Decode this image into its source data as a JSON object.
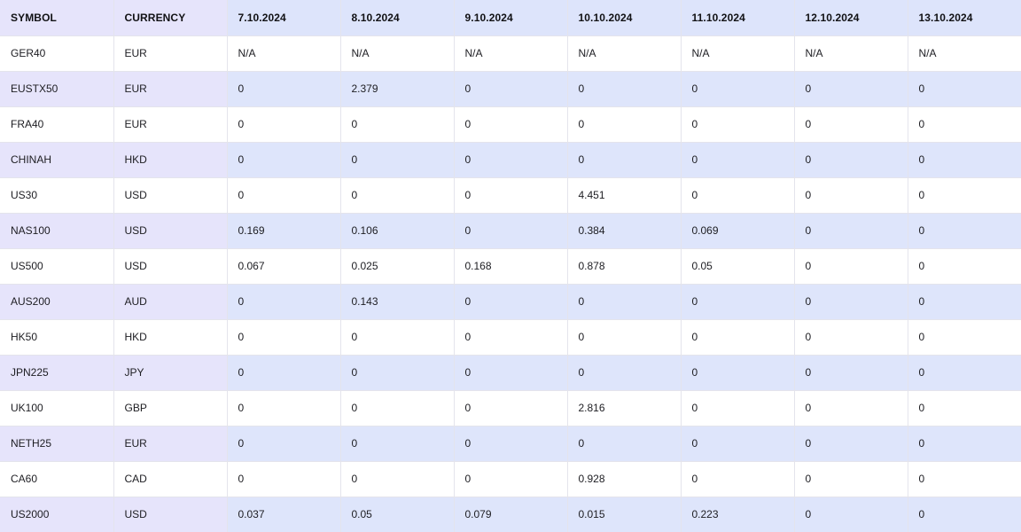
{
  "table": {
    "headers": [
      "SYMBOL",
      "CURRENCY",
      "7.10.2024",
      "8.10.2024",
      "9.10.2024",
      "10.10.2024",
      "11.10.2024",
      "12.10.2024",
      "13.10.2024"
    ],
    "rows": [
      {
        "symbol": "GER40",
        "currency": "EUR",
        "values": [
          "N/A",
          "N/A",
          "N/A",
          "N/A",
          "N/A",
          "N/A",
          "N/A"
        ]
      },
      {
        "symbol": "EUSTX50",
        "currency": "EUR",
        "values": [
          "0",
          "2.379",
          "0",
          "0",
          "0",
          "0",
          "0"
        ]
      },
      {
        "symbol": "FRA40",
        "currency": "EUR",
        "values": [
          "0",
          "0",
          "0",
          "0",
          "0",
          "0",
          "0"
        ]
      },
      {
        "symbol": "CHINAH",
        "currency": "HKD",
        "values": [
          "0",
          "0",
          "0",
          "0",
          "0",
          "0",
          "0"
        ]
      },
      {
        "symbol": "US30",
        "currency": "USD",
        "values": [
          "0",
          "0",
          "0",
          "4.451",
          "0",
          "0",
          "0"
        ]
      },
      {
        "symbol": "NAS100",
        "currency": "USD",
        "values": [
          "0.169",
          "0.106",
          "0",
          "0.384",
          "0.069",
          "0",
          "0"
        ]
      },
      {
        "symbol": "US500",
        "currency": "USD",
        "values": [
          "0.067",
          "0.025",
          "0.168",
          "0.878",
          "0.05",
          "0",
          "0"
        ]
      },
      {
        "symbol": "AUS200",
        "currency": "AUD",
        "values": [
          "0",
          "0.143",
          "0",
          "0",
          "0",
          "0",
          "0"
        ]
      },
      {
        "symbol": "HK50",
        "currency": "HKD",
        "values": [
          "0",
          "0",
          "0",
          "0",
          "0",
          "0",
          "0"
        ]
      },
      {
        "symbol": "JPN225",
        "currency": "JPY",
        "values": [
          "0",
          "0",
          "0",
          "0",
          "0",
          "0",
          "0"
        ]
      },
      {
        "symbol": "UK100",
        "currency": "GBP",
        "values": [
          "0",
          "0",
          "0",
          "2.816",
          "0",
          "0",
          "0"
        ]
      },
      {
        "symbol": "NETH25",
        "currency": "EUR",
        "values": [
          "0",
          "0",
          "0",
          "0",
          "0",
          "0",
          "0"
        ]
      },
      {
        "symbol": "CA60",
        "currency": "CAD",
        "values": [
          "0",
          "0",
          "0",
          "0.928",
          "0",
          "0",
          "0"
        ]
      },
      {
        "symbol": "US2000",
        "currency": "USD",
        "values": [
          "0.037",
          "0.05",
          "0.079",
          "0.015",
          "0.223",
          "0",
          "0"
        ]
      }
    ]
  },
  "colors": {
    "header_bg": "#dde4fb",
    "symbol_col_bg": "#e6e4fb",
    "stripe_bg": "#dee5fb",
    "border": "#e4e4ec"
  }
}
